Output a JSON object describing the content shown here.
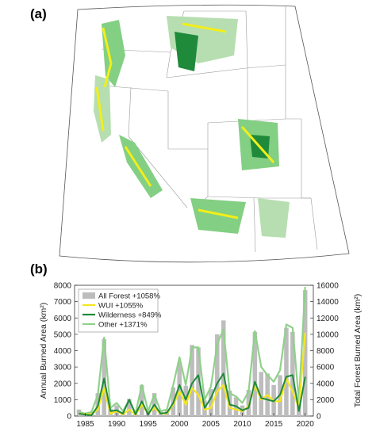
{
  "panel_a_label": "(a)",
  "panel_b_label": "(b)",
  "map_colors": {
    "all_forest": "#b6deb0",
    "wui": "#f2ee1a",
    "wilderness": "#1e8a3a",
    "other": "#83cf83"
  },
  "chart_data": {
    "type": "bar",
    "x": [
      1984,
      1985,
      1986,
      1987,
      1988,
      1989,
      1990,
      1991,
      1992,
      1993,
      1994,
      1995,
      1996,
      1997,
      1998,
      1999,
      2000,
      2001,
      2002,
      2003,
      2004,
      2005,
      2006,
      2007,
      2008,
      2009,
      2010,
      2011,
      2012,
      2013,
      2014,
      2015,
      2016,
      2017,
      2018,
      2019,
      2020
    ],
    "xticks": [
      1985,
      1990,
      1995,
      2000,
      2005,
      2010,
      2015,
      2020
    ],
    "ylabel_left": "Annual Burned Area (km²)",
    "ylabel_right": "Total Forest Burned Area (km²)",
    "ylim_left": [
      0,
      8000
    ],
    "ylim_right": [
      0,
      16000
    ],
    "yticks_left": [
      0,
      1000,
      2000,
      3000,
      4000,
      5000,
      6000,
      7000,
      8000
    ],
    "yticks_right": [
      0,
      2000,
      4000,
      6000,
      8000,
      10000,
      12000,
      14000,
      16000
    ],
    "legend_position": "top-left",
    "series": [
      {
        "name": "All Forest +1058%",
        "axis": "right",
        "type": "bar",
        "color": "#bdbdbd",
        "values": [
          800,
          400,
          500,
          2800,
          9400,
          900,
          1300,
          500,
          2100,
          300,
          3800,
          600,
          2800,
          600,
          700,
          3500,
          6600,
          3700,
          8700,
          8400,
          1900,
          3300,
          10000,
          11700,
          3100,
          2300,
          1300,
          3200,
          10300,
          5400,
          5200,
          3800,
          5000,
          10800,
          10300,
          1500,
          15400
        ]
      },
      {
        "name": "WUI +1055%",
        "axis": "left",
        "type": "line",
        "color": "#f5e61e",
        "values": [
          150,
          100,
          120,
          400,
          1700,
          150,
          300,
          100,
          400,
          80,
          700,
          150,
          500,
          150,
          150,
          700,
          1500,
          700,
          1700,
          1300,
          400,
          500,
          1500,
          1900,
          500,
          400,
          300,
          600,
          1900,
          1000,
          1300,
          900,
          900,
          2300,
          1500,
          500,
          5100
        ]
      },
      {
        "name": "Wilderness +849%",
        "axis": "left",
        "type": "line",
        "color": "#1f8a3a",
        "values": [
          150,
          80,
          50,
          600,
          2300,
          300,
          350,
          150,
          1000,
          100,
          900,
          100,
          700,
          150,
          200,
          800,
          1900,
          1000,
          2000,
          2500,
          500,
          1100,
          2000,
          2600,
          700,
          600,
          350,
          500,
          2100,
          1100,
          1000,
          900,
          1300,
          2400,
          2500,
          300,
          2400
        ]
      },
      {
        "name": "Other +1371%",
        "axis": "left",
        "type": "line",
        "color": "#8fd18a",
        "values": [
          250,
          150,
          250,
          1300,
          4800,
          500,
          800,
          300,
          1000,
          150,
          1900,
          300,
          1300,
          300,
          400,
          1900,
          3600,
          1900,
          4200,
          4200,
          1000,
          1800,
          4400,
          5300,
          1400,
          1200,
          800,
          1500,
          5200,
          3000,
          2500,
          2100,
          2800,
          5600,
          5400,
          900,
          7900
        ]
      }
    ]
  }
}
